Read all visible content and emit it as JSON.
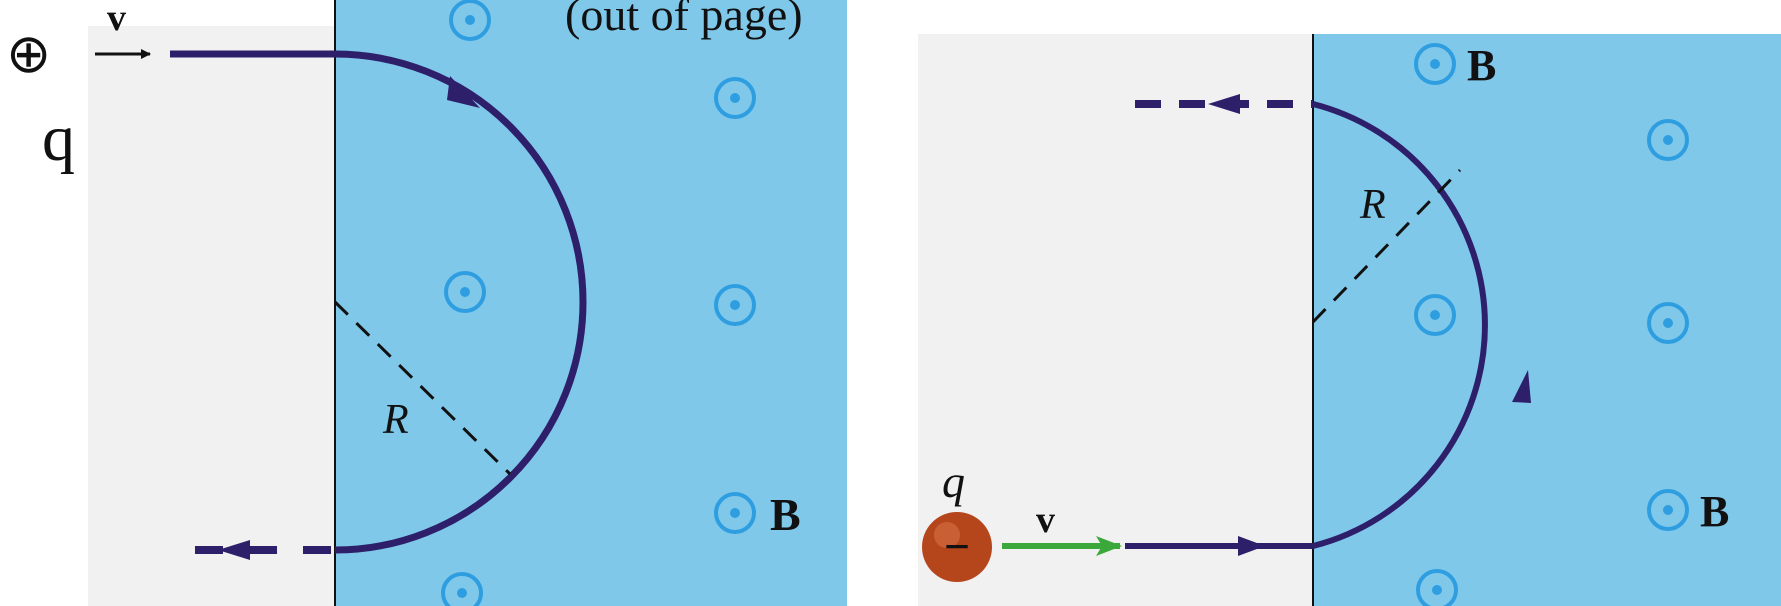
{
  "left_panel": {
    "charge_symbol": "⊕",
    "charge_label": "q",
    "velocity_label": "v",
    "radius_label": "R",
    "field_label": "B",
    "clipped_caption": "(out of page)"
  },
  "right_panel": {
    "charge_symbol": "−",
    "charge_label": "q",
    "velocity_label": "v",
    "radius_label": "R",
    "field_label_top": "B",
    "field_label_bottom": "B"
  },
  "colors": {
    "field_region": "#7fc8ea",
    "field_symbol": "#2f9ee0",
    "path": "#2e1f6b",
    "velocity_arrow": "#3aa83a",
    "electron": "#b5461c",
    "background_pale": "#f1f1f1"
  }
}
